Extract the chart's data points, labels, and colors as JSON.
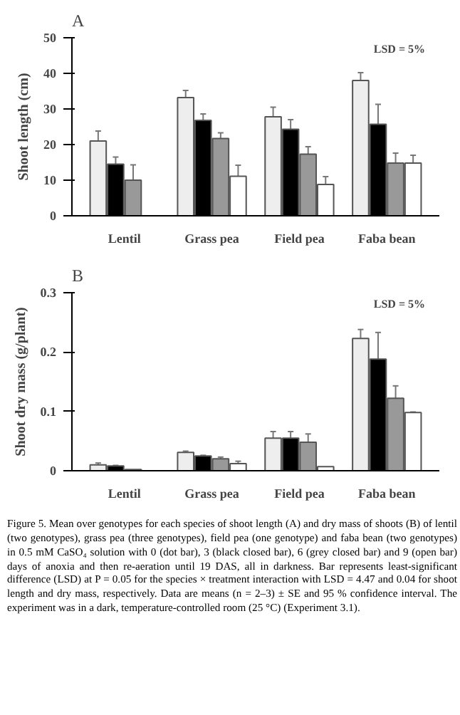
{
  "chart_data": [
    {
      "type": "bar",
      "title": "A",
      "ylabel": "Shoot length (cm)",
      "categories": [
        "Lentil",
        "Grass pea",
        "Field pea",
        "Faba bean"
      ],
      "ylim": [
        0,
        50
      ],
      "yticks": [
        0,
        10,
        20,
        30,
        40,
        50
      ],
      "grid": false,
      "annotations": [
        "LSD = 5%"
      ],
      "series": [
        {
          "color": "#eeeeee",
          "values": [
            21,
            33.2,
            27.8,
            38
          ],
          "errors": [
            [
              21,
              23.8
            ],
            [
              33.2,
              35.2
            ],
            [
              27.8,
              30.5
            ],
            [
              38,
              40.2
            ]
          ]
        },
        {
          "color": "#000000",
          "values": [
            14.5,
            26.8,
            24.3,
            25.7
          ],
          "errors": [
            [
              14.5,
              16.5
            ],
            [
              26.8,
              28.6
            ],
            [
              24.3,
              27
            ],
            [
              25.7,
              31.3
            ]
          ]
        },
        {
          "color": "#999999",
          "values": [
            10,
            21.7,
            17.3,
            14.8
          ],
          "errors": [
            [
              10,
              14.3
            ],
            [
              21.7,
              23.3
            ],
            [
              17.3,
              19.4
            ],
            [
              14.8,
              17.6
            ]
          ]
        },
        {
          "color": "#ffffff",
          "values": [
            null,
            11.1,
            8.8,
            14.8
          ],
          "errors": [
            null,
            [
              11.1,
              14.2
            ],
            [
              8.8,
              11
            ],
            [
              14.8,
              17
            ]
          ]
        }
      ]
    },
    {
      "type": "bar",
      "title": "B",
      "ylabel": "Shoot dry mass (g/plant)",
      "categories": [
        "Lentil",
        "Grass pea",
        "Field pea",
        "Faba bean"
      ],
      "ylim": [
        0,
        0.3
      ],
      "yticks": [
        0,
        0.1,
        0.2,
        0.3
      ],
      "grid": false,
      "annotations": [
        "LSD = 5%",
        "Figure 5. Mean over genotypes for each species of shoot length (A) and dry mass of shoots (B) of lentil (two genotypes), grass pea (three genotypes), field pea (one genotype) and faba bean (two genotypes) in 0.5 mM CaSO₄ solution with 0 (dot bar), 3 (black closed bar), 6 (grey closed bar) and 9 (open bar) days of anoxia and then re-aeration until 19 DAS, all in darkness. Bar represents least-significant difference (LSD) at P = 0.05 for the species × treatment interaction with LSD = 4.47 and 0.04 for shoot length and dry mass, respectively. Data are means (n = 2–3) ± SE and 95 % confidence interval. The experiment was in a dark, temperature-controlled room (25 °C) (Experiment 3.1)."
      ],
      "series": [
        {
          "color": "#eeeeee",
          "values": [
            0.01,
            0.031,
            0.055,
            0.223
          ],
          "errors": [
            [
              0.01,
              0.013
            ],
            [
              0.031,
              0.033
            ],
            [
              0.055,
              0.066
            ],
            [
              0.223,
              0.238
            ]
          ]
        },
        {
          "color": "#000000",
          "values": [
            0.008,
            0.025,
            0.055,
            0.188
          ],
          "errors": [
            [
              0.008,
              0.009
            ],
            [
              0.025,
              0.026
            ],
            [
              0.055,
              0.066
            ],
            [
              0.188,
              0.233
            ]
          ]
        },
        {
          "color": "#999999",
          "values": [
            0.002,
            0.02,
            0.048,
            0.122
          ],
          "errors": [
            null,
            [
              0.02,
              0.023
            ],
            [
              0.048,
              0.062
            ],
            [
              0.122,
              0.143
            ]
          ]
        },
        {
          "color": "#ffffff",
          "values": [
            null,
            0.012,
            0.007,
            0.098
          ],
          "errors": [
            null,
            [
              0.012,
              0.016
            ],
            null,
            [
              0.098,
              0.099
            ]
          ]
        }
      ]
    }
  ]
}
